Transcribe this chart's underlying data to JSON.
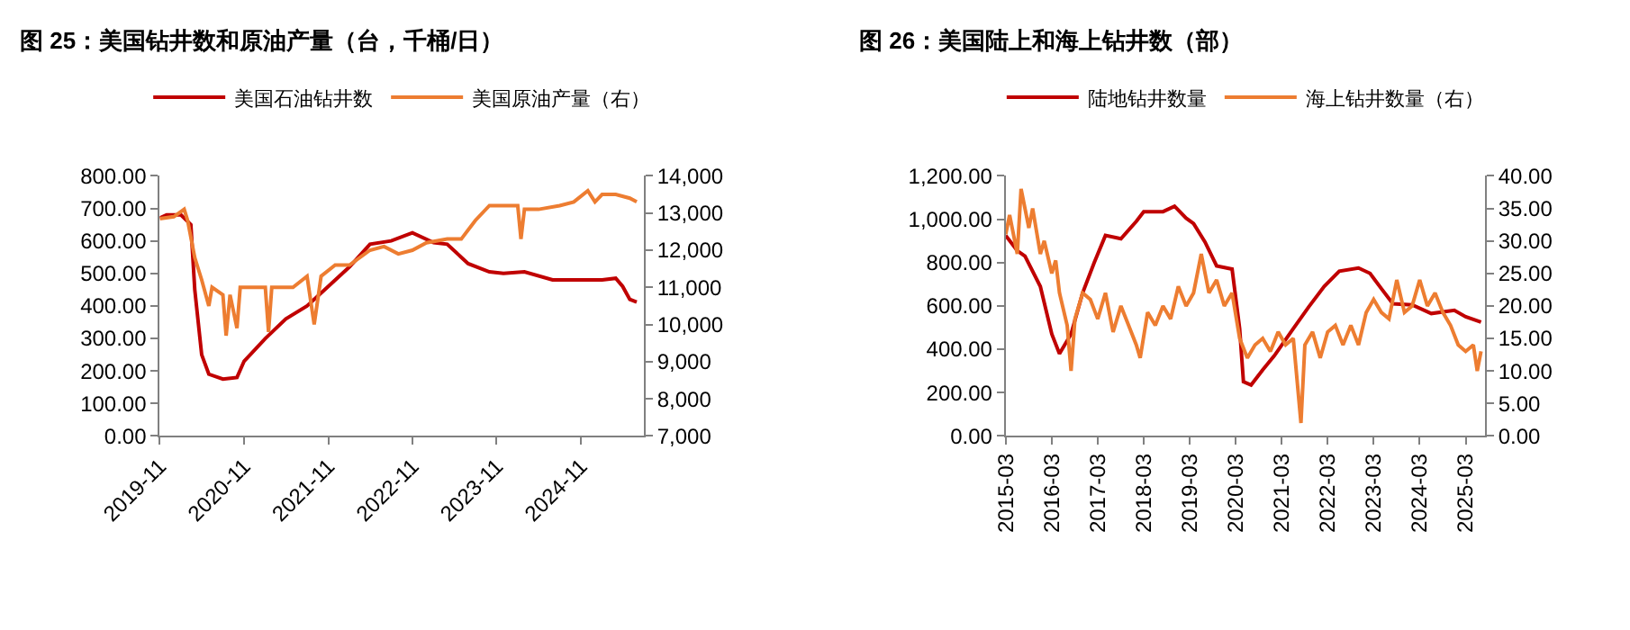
{
  "chart_data": [
    {
      "type": "line",
      "title": "图 25：美国钻井数和原油产量（台，千桶/日）",
      "legend": "top",
      "grid": false,
      "marker": "none",
      "line_style": "solid",
      "xlim": [
        "2019-11-01",
        "2025-08-01"
      ],
      "xticks": [
        "2019-11",
        "2020-11",
        "2021-11",
        "2022-11",
        "2023-11",
        "2024-11"
      ],
      "ylim": [
        0,
        800
      ],
      "yticks": [
        {
          "value": 0,
          "label": "0.00"
        },
        {
          "value": 100,
          "label": "100.00"
        },
        {
          "value": 200,
          "label": "200.00"
        },
        {
          "value": 300,
          "label": "300.00"
        },
        {
          "value": 400,
          "label": "400.00"
        },
        {
          "value": 500,
          "label": "500.00"
        },
        {
          "value": 600,
          "label": "600.00"
        },
        {
          "value": 700,
          "label": "700.00"
        },
        {
          "value": 800,
          "label": "800.00"
        }
      ],
      "y2lim": [
        7000,
        14000
      ],
      "y2ticks": [
        {
          "value": 7000,
          "label": "7,000"
        },
        {
          "value": 8000,
          "label": "8,000"
        },
        {
          "value": 9000,
          "label": "9,000"
        },
        {
          "value": 10000,
          "label": "10,000"
        },
        {
          "value": 11000,
          "label": "11,000"
        },
        {
          "value": 12000,
          "label": "12,000"
        },
        {
          "value": 13000,
          "label": "13,000"
        },
        {
          "value": 14000,
          "label": "14,000"
        }
      ],
      "series": [
        {
          "name": "美国石油钻井数",
          "color": "#c00000",
          "x": [
            "2019-11",
            "2019-12",
            "2020-02",
            "2020-03-15",
            "2020-04",
            "2020-05",
            "2020-06",
            "2020-08",
            "2020-10",
            "2020-11",
            "2021-02",
            "2021-05",
            "2021-08",
            "2021-11",
            "2022-02",
            "2022-05",
            "2022-08",
            "2022-11",
            "2023-02",
            "2023-04",
            "2023-07",
            "2023-10",
            "2023-12",
            "2024-03",
            "2024-07",
            "2024-10",
            "2025-02",
            "2025-04",
            "2025-05",
            "2025-06",
            "2025-07"
          ],
          "values": [
            670,
            680,
            680,
            650,
            450,
            250,
            190,
            175,
            180,
            230,
            300,
            360,
            400,
            460,
            520,
            590,
            600,
            625,
            595,
            590,
            530,
            505,
            500,
            505,
            480,
            480,
            480,
            485,
            460,
            420,
            412
          ]
        },
        {
          "name": "美国原油产量（右）",
          "color": "#ed7d31",
          "axis": "y2",
          "x": [
            "2019-11",
            "2020-01",
            "2020-02-15",
            "2020-03",
            "2020-04",
            "2020-05",
            "2020-06",
            "2020-06-15",
            "2020-08",
            "2020-08-15",
            "2020-09",
            "2020-10",
            "2020-10-15",
            "2020-12",
            "2021-02",
            "2021-02-15",
            "2021-03",
            "2021-06",
            "2021-08",
            "2021-09",
            "2021-10",
            "2021-12",
            "2022-02",
            "2022-05",
            "2022-07",
            "2022-09",
            "2022-11",
            "2023-01",
            "2023-04",
            "2023-06",
            "2023-08",
            "2023-10",
            "2023-12",
            "2024-02",
            "2024-02-15",
            "2024-03",
            "2024-05",
            "2024-08",
            "2024-10",
            "2024-12",
            "2025-01",
            "2025-02",
            "2025-04",
            "2025-06",
            "2025-07"
          ],
          "values": [
            12850,
            12900,
            13100,
            12800,
            11800,
            11200,
            10500,
            11000,
            10800,
            9700,
            10800,
            9900,
            11000,
            11000,
            11000,
            9800,
            11000,
            11000,
            11300,
            10000,
            11300,
            11600,
            11600,
            12000,
            12100,
            11900,
            12000,
            12200,
            12300,
            12300,
            12800,
            13200,
            13200,
            13200,
            12300,
            13100,
            13100,
            13200,
            13300,
            13600,
            13300,
            13500,
            13500,
            13400,
            13300
          ]
        }
      ]
    },
    {
      "type": "line",
      "title": "图 26：美国陆上和海上钻井数（部）",
      "legend": "top",
      "grid": false,
      "marker": "none",
      "line_style": "solid",
      "xlim": [
        "2015-03-01",
        "2025-08-01"
      ],
      "xticks": [
        "2015-03",
        "2016-03",
        "2017-03",
        "2018-03",
        "2019-03",
        "2020-03",
        "2021-03",
        "2022-03",
        "2023-03",
        "2024-03",
        "2025-03"
      ],
      "ylim": [
        0,
        1200
      ],
      "yticks": [
        {
          "value": 0,
          "label": "0.00"
        },
        {
          "value": 200,
          "label": "200.00"
        },
        {
          "value": 400,
          "label": "400.00"
        },
        {
          "value": 600,
          "label": "600.00"
        },
        {
          "value": 800,
          "label": "800.00"
        },
        {
          "value": 1000,
          "label": "1,000.00"
        },
        {
          "value": 1200,
          "label": "1,200.00"
        }
      ],
      "y2lim": [
        0,
        40
      ],
      "y2ticks": [
        {
          "value": 0,
          "label": "0.00"
        },
        {
          "value": 5,
          "label": "5.00"
        },
        {
          "value": 10,
          "label": "10.00"
        },
        {
          "value": 15,
          "label": "15.00"
        },
        {
          "value": 20,
          "label": "20.00"
        },
        {
          "value": 25,
          "label": "25.00"
        },
        {
          "value": 30,
          "label": "30.00"
        },
        {
          "value": 35,
          "label": "35.00"
        },
        {
          "value": 40,
          "label": "40.00"
        }
      ],
      "series": [
        {
          "name": "陆地钻井数量",
          "color": "#c00000",
          "x": [
            "2015-03",
            "2015-06",
            "2015-08",
            "2015-12",
            "2016-03",
            "2016-05",
            "2016-08",
            "2016-11",
            "2017-02",
            "2017-05",
            "2017-09",
            "2018-01",
            "2018-03",
            "2018-08",
            "2018-11",
            "2019-02",
            "2019-04",
            "2019-07",
            "2019-10",
            "2020-02",
            "2020-04",
            "2020-05",
            "2020-07",
            "2020-10",
            "2021-01",
            "2021-06",
            "2021-10",
            "2022-02",
            "2022-06",
            "2022-11",
            "2023-02",
            "2023-05",
            "2023-08",
            "2024-01",
            "2024-06",
            "2024-12",
            "2025-03",
            "2025-07"
          ],
          "values": [
            925,
            855,
            830,
            690,
            470,
            380,
            470,
            660,
            800,
            925,
            910,
            990,
            1035,
            1035,
            1060,
            1005,
            980,
            895,
            785,
            770,
            495,
            250,
            235,
            305,
            370,
            495,
            595,
            690,
            760,
            775,
            750,
            680,
            610,
            605,
            565,
            580,
            550,
            525
          ]
        },
        {
          "name": "海上钻井数量（右）",
          "color": "#ed7d31",
          "axis": "y2",
          "x": [
            "2015-03",
            "2015-04",
            "2015-06",
            "2015-07",
            "2015-09",
            "2015-10",
            "2015-12",
            "2016-01",
            "2016-03",
            "2016-04",
            "2016-05",
            "2016-07",
            "2016-08",
            "2016-09",
            "2016-11",
            "2017-01",
            "2017-03",
            "2017-05",
            "2017-07",
            "2017-09",
            "2017-11",
            "2018-01",
            "2018-02",
            "2018-04",
            "2018-06",
            "2018-08",
            "2018-10",
            "2018-12",
            "2019-02",
            "2019-04",
            "2019-06",
            "2019-08",
            "2019-10",
            "2019-12",
            "2020-02",
            "2020-04",
            "2020-06",
            "2020-08",
            "2020-10",
            "2020-12",
            "2021-02",
            "2021-04",
            "2021-06",
            "2021-08",
            "2021-09",
            "2021-11",
            "2022-01",
            "2022-03",
            "2022-05",
            "2022-07",
            "2022-09",
            "2022-11",
            "2023-01",
            "2023-03",
            "2023-05",
            "2023-07",
            "2023-09",
            "2023-11",
            "2024-01",
            "2024-03",
            "2024-05",
            "2024-07",
            "2024-09",
            "2024-11",
            "2025-01",
            "2025-03",
            "2025-05",
            "2025-06",
            "2025-07"
          ],
          "values": [
            31,
            34,
            28,
            38,
            32,
            35,
            28,
            30,
            25,
            27,
            22,
            17,
            10,
            18,
            22,
            21,
            18,
            22,
            16,
            20,
            17,
            14,
            12,
            19,
            17,
            20,
            18,
            23,
            20,
            22,
            28,
            22,
            24,
            20,
            22,
            15,
            12,
            14,
            15,
            13,
            16,
            14,
            15,
            2,
            14,
            16,
            12,
            16,
            17,
            14,
            17,
            14,
            19,
            21,
            19,
            18,
            24,
            19,
            20,
            24,
            20,
            22,
            19,
            17,
            14,
            13,
            14,
            10,
            13
          ]
        }
      ]
    }
  ]
}
